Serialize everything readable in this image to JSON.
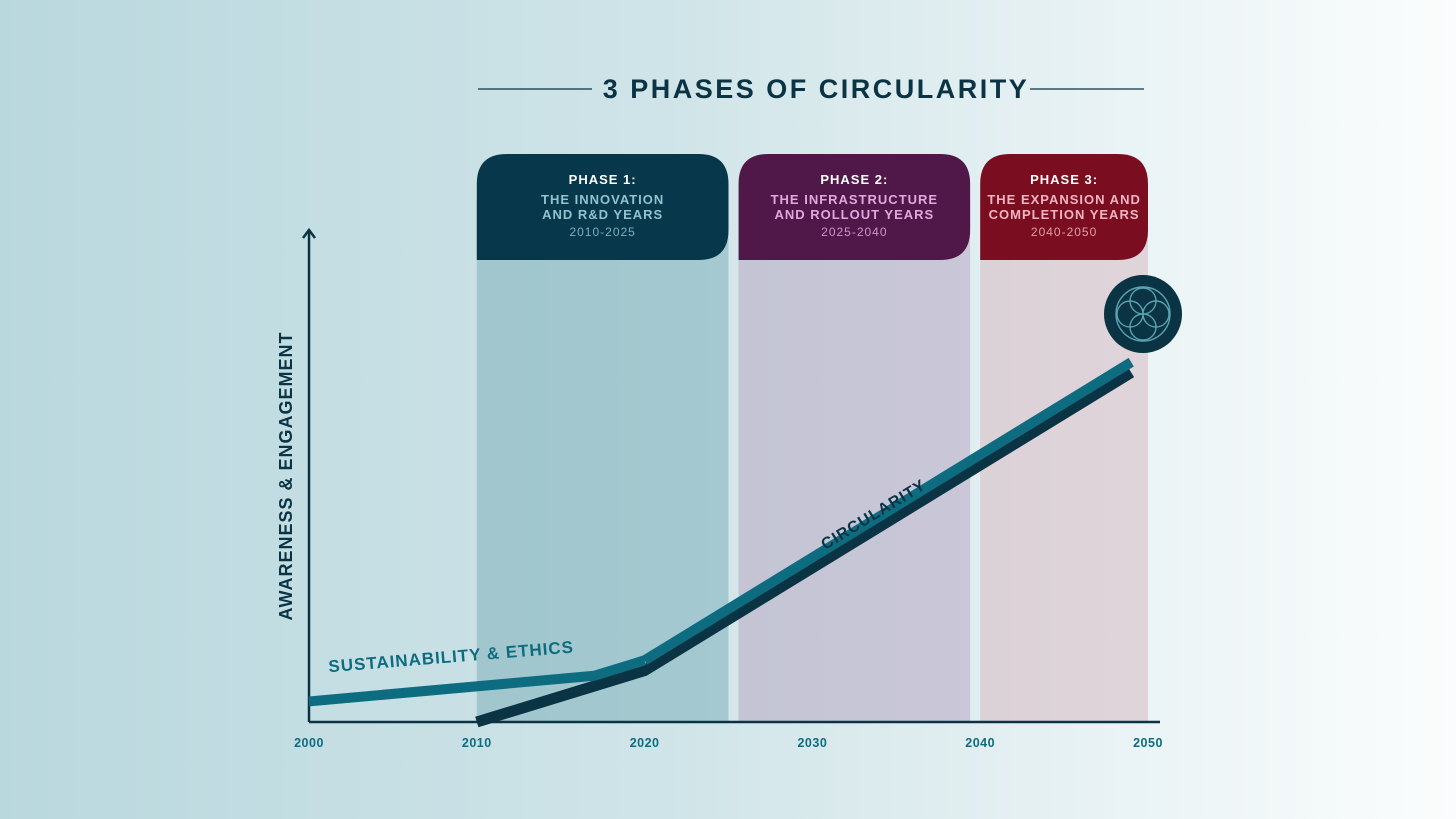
{
  "chart_data": {
    "type": "line",
    "title": "3 PHASES OF CIRCULARITY",
    "ylabel": "AWARENESS & ENGAGEMENT",
    "xlabel": "",
    "xlim": [
      2000,
      2050
    ],
    "ylim": [
      0,
      100
    ],
    "x_ticks": [
      "2000",
      "2010",
      "2020",
      "2030",
      "2040",
      "2050"
    ],
    "phases": [
      {
        "label": "PHASE 1:",
        "name_line1": "THE INNOVATION",
        "name_line2": "AND R&D YEARS",
        "years": "2010-2025",
        "start": 2010,
        "end": 2025,
        "color": "#07374a",
        "band_color": "#7fb0ba",
        "sub_color": "#8fc4cf"
      },
      {
        "label": "PHASE 2:",
        "name_line1": "THE INFRASTRUCTURE",
        "name_line2": "AND ROLLOUT YEARS",
        "years": "2025-2040",
        "start": 2025.6,
        "end": 2039.4,
        "color": "#4f1848",
        "band_color": "#b7a8c2",
        "sub_color": "#e3a7e0"
      },
      {
        "label": "PHASE 3:",
        "name_line1": "THE EXPANSION AND",
        "name_line2": "COMPLETION YEARS",
        "years": "2040-2050",
        "start": 2040,
        "end": 2050,
        "color": "#7a0d1f",
        "band_color": "#d6b9c2",
        "sub_color": "#f3b6c2"
      }
    ],
    "series": [
      {
        "name": "SUSTAINABILITY & ETHICS",
        "color": "#0e6c80",
        "x": [
          2000,
          2017,
          2020
        ],
        "y": [
          4,
          9,
          12
        ]
      },
      {
        "name": "CIRCULARITY",
        "color": "#0a3344",
        "x": [
          2010,
          2020,
          2049
        ],
        "y": [
          0,
          10,
          68
        ]
      }
    ],
    "grid": false,
    "legend": "none"
  }
}
